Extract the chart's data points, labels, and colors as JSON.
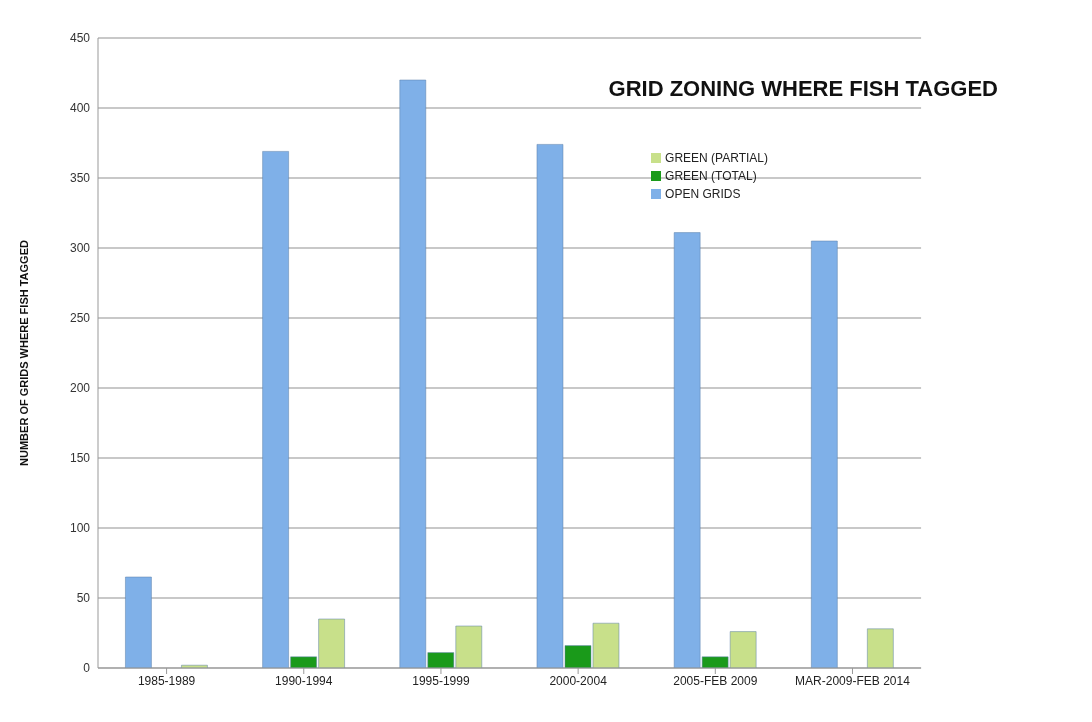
{
  "chart_data": {
    "type": "bar",
    "title": "GRID ZONING WHERE FISH TAGGED",
    "ylabel": "NUMBER OF GRIDS WHERE FISH TAGGED",
    "categories": [
      "1985-1989",
      "1990-1994",
      "1995-1999",
      "2000-2004",
      "2005-FEB 2009",
      "MAR-2009-FEB 2014"
    ],
    "series": [
      {
        "name": "OPEN GRIDS",
        "color": "#7fb0e8",
        "values": [
          65,
          369,
          420,
          374,
          311,
          305
        ]
      },
      {
        "name": "GREEN (TOTAL)",
        "color": "#1a9a1a",
        "values": [
          0,
          8,
          11,
          16,
          8,
          0
        ]
      },
      {
        "name": "GREEN (PARTIAL)",
        "color": "#c8e08a",
        "values": [
          2,
          35,
          30,
          32,
          26,
          28
        ]
      }
    ],
    "ylim": [
      0,
      450
    ],
    "yticks": [
      0,
      50,
      100,
      150,
      200,
      250,
      300,
      350,
      400,
      450
    ],
    "grid": "y",
    "legend": "top right"
  }
}
